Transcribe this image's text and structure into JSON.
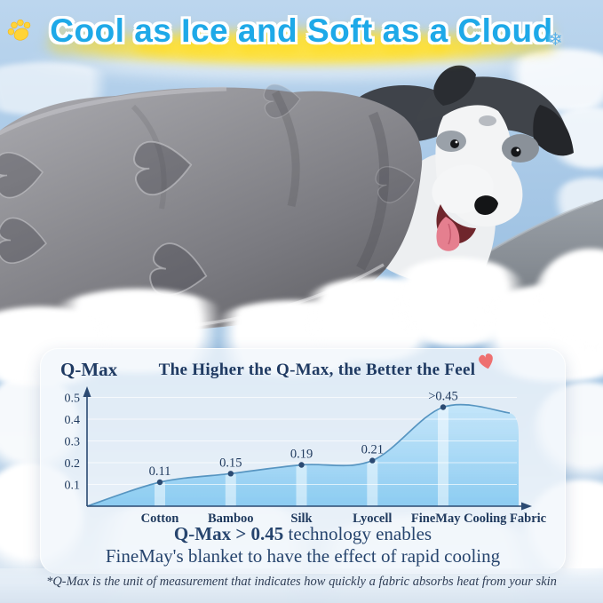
{
  "headline": {
    "text": "Cool as Ice and Soft as a Cloud",
    "snowflake_glyph": "❄"
  },
  "panel": {
    "caption_bold": "Q-Max > 0.45",
    "caption_rest": " technology enables",
    "caption_line2": "FineMay's blanket to have the effect of rapid cooling"
  },
  "footnote": "*Q-Max is the unit of measurement that indicates how quickly a fabric absorbs heat from your skin",
  "colors": {
    "title_blue": "#1ea9e8",
    "glow_yellow": "#ffe24d",
    "navy_text": "#1f3a62",
    "chart_fill": "#9fd2f0",
    "chart_line": "#5795c1",
    "heart_red": "#ee7070",
    "blanket_gray": "#8e8e93"
  },
  "chart_data": {
    "type": "area",
    "title": "The Higher the Q-Max, the Better the Feel",
    "ylabel": "Q-Max",
    "xlabel": "",
    "categories": [
      "Cotton",
      "Bamboo",
      "Silk",
      "Lyocell",
      "FineMay Cooling Fabric"
    ],
    "values": [
      0.11,
      0.15,
      0.19,
      0.21,
      0.455
    ],
    "value_labels": [
      "0.11",
      "0.15",
      "0.19",
      "0.21",
      ">0.45"
    ],
    "ylim": [
      0,
      0.5
    ],
    "yticks": [
      0.1,
      0.2,
      0.3,
      0.4,
      0.5
    ],
    "grid": true,
    "legend": "none"
  }
}
